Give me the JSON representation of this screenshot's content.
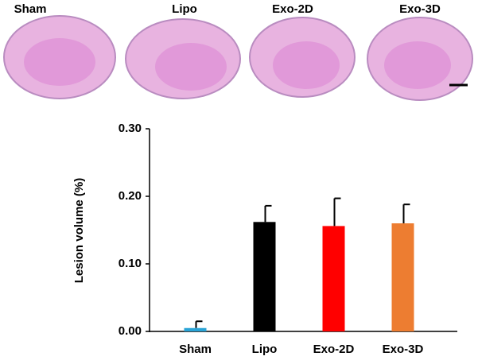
{
  "image_panels": {
    "labels": [
      "Sham",
      "Lipo",
      "Exo-2D",
      "Exo-3D"
    ]
  },
  "chart_data": {
    "type": "bar",
    "y_label": "Lesion volume (%)",
    "categories": [
      "Sham",
      "Lipo",
      "Exo-2D",
      "Exo-3D"
    ],
    "values": [
      0.005,
      0.162,
      0.156,
      0.16
    ],
    "errors": [
      0.01,
      0.024,
      0.041,
      0.028
    ],
    "colors": [
      "#29a3d6",
      "#000000",
      "#ff0000",
      "#ed7d31"
    ],
    "ylim": [
      0,
      0.3
    ],
    "yticks": [
      {
        "value": 0,
        "label": "0.00"
      },
      {
        "value": 0.1,
        "label": "0.10"
      },
      {
        "value": 0.2,
        "label": "0.20"
      },
      {
        "value": 0.3,
        "label": "0.30"
      }
    ]
  }
}
